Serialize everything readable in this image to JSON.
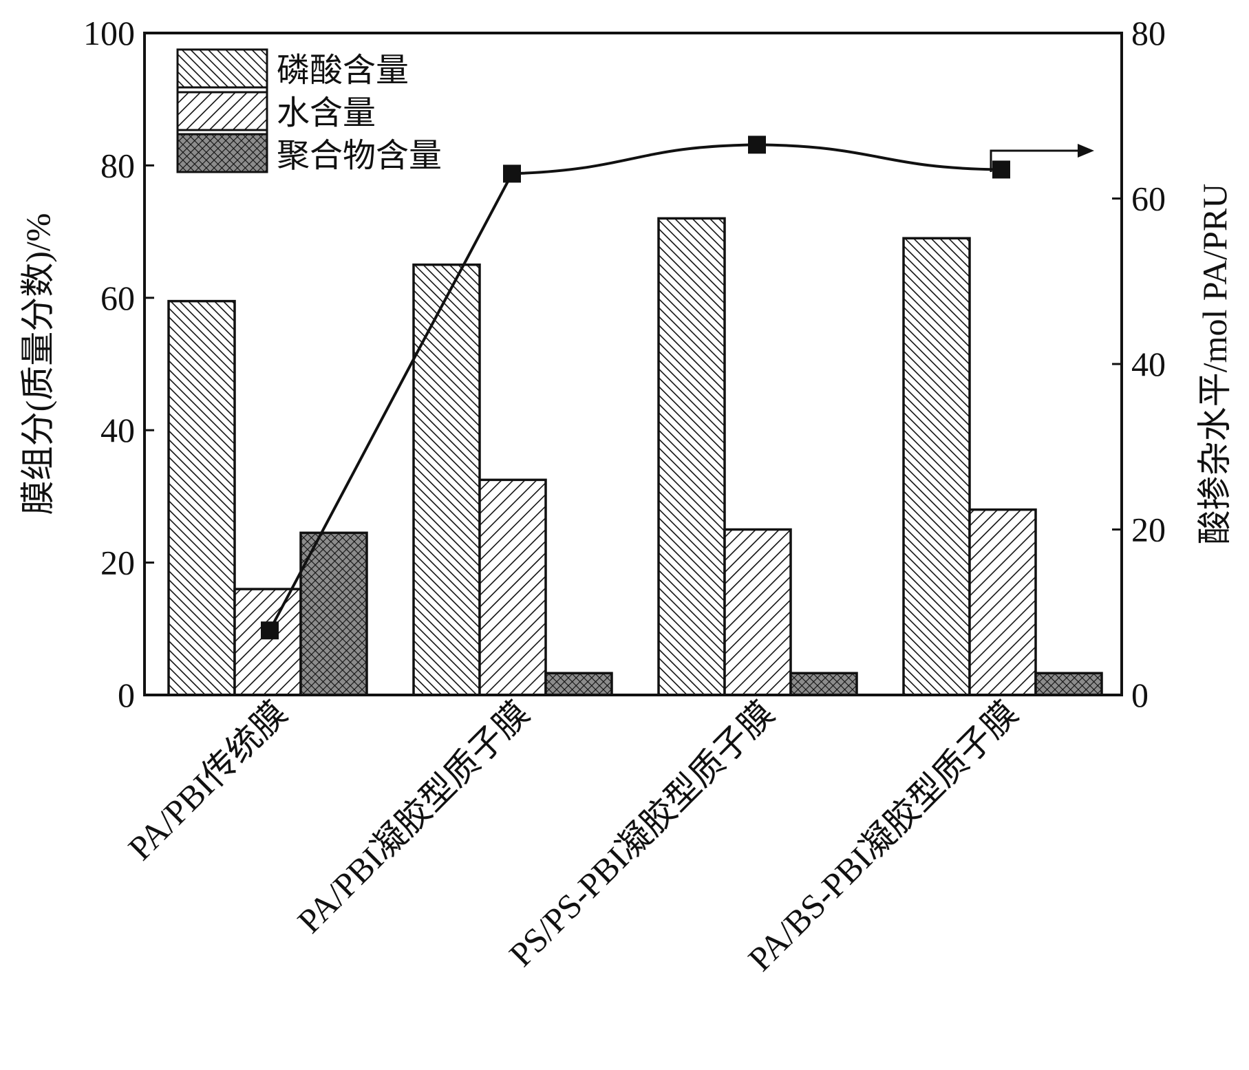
{
  "chart_data": {
    "type": "bar",
    "title": "",
    "xlabel": "",
    "ylabel": "膜组分(质量分数)/%",
    "ylabel_right": "酸掺杂水平/mol PA/PRU",
    "ylim": [
      0,
      100
    ],
    "ylim_right": [
      0,
      80
    ],
    "yticks": [
      0,
      20,
      40,
      60,
      80,
      100
    ],
    "yticks_right": [
      0,
      20,
      40,
      60,
      80
    ],
    "categories": [
      "PA/PBI传统膜",
      "PA/PBI凝胶型质子膜",
      "PS/PS-PBI凝胶型质子膜",
      "PA/BS-PBI凝胶型质子膜"
    ],
    "series": [
      {
        "name": "磷酸含量",
        "axis": "left",
        "pattern": "hatch-dense",
        "values": [
          59.5,
          65,
          72,
          69
        ]
      },
      {
        "name": "水含量",
        "axis": "left",
        "pattern": "hatch-sparse",
        "values": [
          16,
          32.5,
          25,
          28
        ]
      },
      {
        "name": "聚合物含量",
        "axis": "left",
        "pattern": "crosshatch",
        "values": [
          24.5,
          3.3,
          3.3,
          3.3
        ]
      },
      {
        "name": "",
        "type": "line",
        "axis": "right",
        "values": [
          7.8,
          63,
          66.5,
          63.5
        ]
      }
    ],
    "legend": {
      "position": "top-left"
    },
    "grid": false,
    "colors": {
      "ink": "#111111",
      "bar_fill": "#ffffff",
      "crosshatch_bg": "#8c8c8c"
    }
  }
}
